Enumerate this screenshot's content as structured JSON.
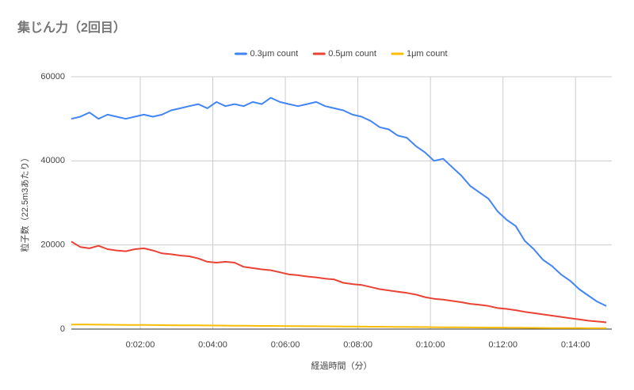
{
  "chart_data": {
    "type": "line",
    "title": "集じん力（2回目）",
    "x_label": "経過時間（分）",
    "y_label": "粒子数（22.5m3あたり）",
    "x": [
      6,
      21,
      36,
      51,
      66,
      81,
      96,
      111,
      126,
      141,
      156,
      171,
      186,
      201,
      216,
      231,
      246,
      261,
      276,
      291,
      306,
      321,
      336,
      351,
      366,
      381,
      396,
      411,
      426,
      441,
      456,
      471,
      486,
      501,
      516,
      531,
      546,
      561,
      576,
      591,
      606,
      621,
      636,
      651,
      666,
      681,
      696,
      711,
      726,
      741,
      756,
      771,
      786,
      801,
      816,
      831,
      846,
      861,
      876,
      891
    ],
    "series": [
      {
        "name": "0.3μm count",
        "color": "#4285f4",
        "values": [
          50000,
          50500,
          51500,
          50000,
          51000,
          50500,
          50000,
          50500,
          51000,
          50500,
          51000,
          52000,
          52500,
          53000,
          53500,
          52500,
          54000,
          53000,
          53500,
          53000,
          54000,
          53500,
          55000,
          54000,
          53500,
          53000,
          53500,
          54000,
          53000,
          52500,
          52000,
          51000,
          50500,
          49500,
          48000,
          47500,
          46000,
          45500,
          43500,
          42000,
          40000,
          40500,
          38500,
          36500,
          34000,
          32500,
          31000,
          28000,
          26000,
          24500,
          21000,
          19000,
          16500,
          15000,
          13000,
          11500,
          9500,
          8000,
          6500,
          5500
        ]
      },
      {
        "name": "0.5μm count",
        "color": "#ea4335",
        "values": [
          20800,
          19500,
          19200,
          19800,
          19000,
          18700,
          18500,
          19000,
          19200,
          18700,
          18000,
          17800,
          17500,
          17300,
          16800,
          16000,
          15800,
          16000,
          15800,
          14800,
          14500,
          14200,
          14000,
          13500,
          13000,
          12800,
          12500,
          12300,
          12000,
          11800,
          11000,
          10700,
          10500,
          10000,
          9500,
          9200,
          8900,
          8600,
          8200,
          7600,
          7200,
          7000,
          6700,
          6400,
          6000,
          5800,
          5500,
          5000,
          4800,
          4500,
          4100,
          3800,
          3500,
          3200,
          2900,
          2600,
          2300,
          2000,
          1800,
          1600
        ]
      },
      {
        "name": "1μm count",
        "color": "#fbbc04",
        "values": [
          1100,
          1080,
          1070,
          1050,
          1040,
          1020,
          1000,
          990,
          970,
          960,
          940,
          920,
          910,
          890,
          880,
          860,
          840,
          830,
          810,
          800,
          780,
          760,
          750,
          730,
          720,
          700,
          680,
          670,
          650,
          640,
          620,
          600,
          590,
          570,
          560,
          540,
          520,
          510,
          490,
          480,
          460,
          440,
          430,
          410,
          400,
          380,
          360,
          350,
          330,
          320,
          300,
          280,
          270,
          250,
          240,
          230,
          220,
          210,
          205,
          200
        ]
      }
    ],
    "xlim": [
      6,
      900
    ],
    "ylim": [
      0,
      60000
    ],
    "xticks": [
      {
        "value": 120,
        "label": "0:02:00"
      },
      {
        "value": 240,
        "label": "0:04:00"
      },
      {
        "value": 360,
        "label": "0:06:00"
      },
      {
        "value": 480,
        "label": "0:08:00"
      },
      {
        "value": 600,
        "label": "0:10:00"
      },
      {
        "value": 720,
        "label": "0:12:00"
      },
      {
        "value": 840,
        "label": "0:14:00"
      }
    ],
    "yticks": [
      0,
      20000,
      40000,
      60000
    ],
    "grid": true,
    "legend": "top"
  }
}
